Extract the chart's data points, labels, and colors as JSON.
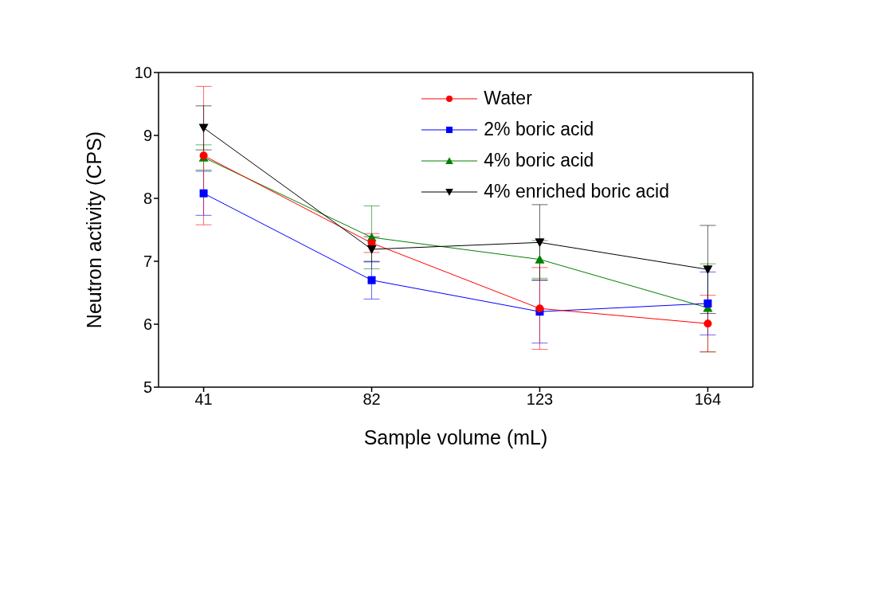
{
  "chart_data": {
    "type": "line",
    "xlabel": "Sample volume (mL)",
    "ylabel": "Neutron activity (CPS)",
    "x": [
      41,
      82,
      123,
      164
    ],
    "xlim": [
      30,
      175
    ],
    "xticks": [
      41,
      82,
      123,
      164
    ],
    "ylim": [
      5,
      10
    ],
    "yticks": [
      5,
      6,
      7,
      8,
      9,
      10
    ],
    "grid": false,
    "legend": "top right",
    "line_style": "solid",
    "series": [
      {
        "name": "Water",
        "color": "#ff0000",
        "marker": "circle",
        "values": [
          8.68,
          7.29,
          6.25,
          6.01
        ],
        "errors": [
          1.1,
          0.15,
          0.65,
          0.45
        ]
      },
      {
        "name": "2% boric acid",
        "color": "#0000ff",
        "marker": "square",
        "values": [
          8.08,
          6.7,
          6.2,
          6.33
        ],
        "errors": [
          0.35,
          0.3,
          0.5,
          0.5
        ]
      },
      {
        "name": "4% boric acid",
        "color": "#008000",
        "marker": "triangle",
        "values": [
          8.65,
          7.38,
          7.03,
          6.26
        ],
        "errors": [
          0.2,
          0.5,
          0.3,
          0.7
        ]
      },
      {
        "name": "4% enriched boric acid",
        "color": "#000000",
        "marker": "triangle_down",
        "values": [
          9.12,
          7.19,
          7.3,
          6.87
        ],
        "errors": [
          0.35,
          0.2,
          0.6,
          0.7
        ]
      }
    ]
  }
}
